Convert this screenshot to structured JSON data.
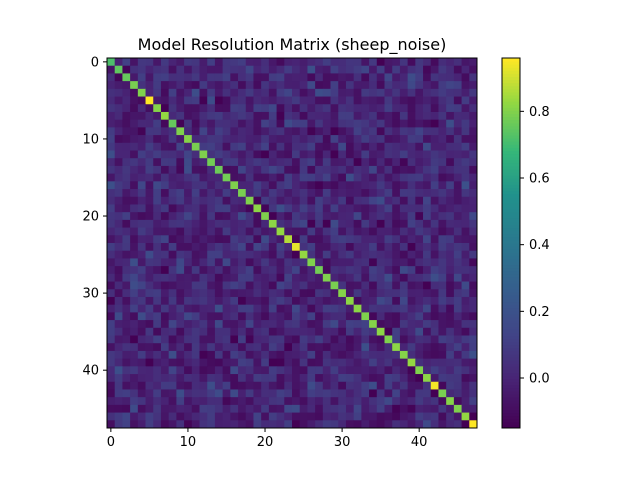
{
  "chart_data": {
    "type": "heatmap",
    "title": "Model Resolution Matrix (sheep_noise)",
    "xlabel": "",
    "ylabel": "",
    "size": 48,
    "x_ticks": [
      0,
      10,
      20,
      30,
      40
    ],
    "y_ticks": [
      0,
      10,
      20,
      30,
      40
    ],
    "colorbar": {
      "min": -0.15,
      "max": 0.96,
      "ticks": [
        0.0,
        0.2,
        0.4,
        0.6,
        0.8
      ],
      "tick_labels": [
        "0.0",
        "0.2",
        "0.4",
        "0.6",
        "0.8"
      ]
    },
    "colormap": "viridis",
    "diagonal": [
      0.72,
      0.75,
      0.76,
      0.79,
      0.8,
      0.97,
      0.81,
      0.83,
      0.76,
      0.8,
      0.81,
      0.79,
      0.8,
      0.78,
      0.77,
      0.78,
      0.8,
      0.79,
      0.8,
      0.82,
      0.8,
      0.82,
      0.83,
      0.87,
      0.93,
      0.83,
      0.8,
      0.78,
      0.8,
      0.79,
      0.81,
      0.82,
      0.82,
      0.8,
      0.81,
      0.82,
      0.8,
      0.82,
      0.81,
      0.83,
      0.8,
      0.82,
      0.95,
      0.79,
      0.81,
      0.8,
      0.83,
      0.96
    ],
    "off_diagonal_range": [
      -0.15,
      0.2
    ]
  }
}
